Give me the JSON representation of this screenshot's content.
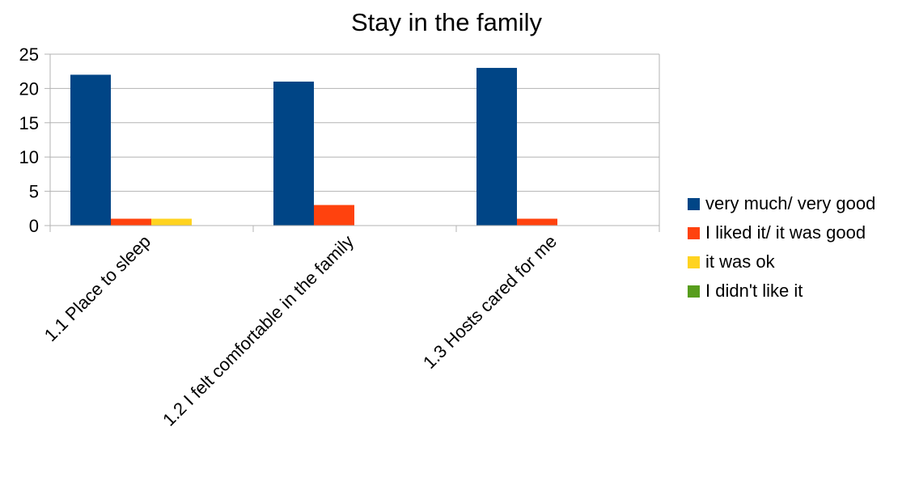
{
  "chart_data": {
    "type": "bar",
    "title": "Stay in the family",
    "xlabel": "",
    "ylabel": "",
    "categories": [
      "1.1  Place to sleep",
      "1.2  I felt comfortable in the family",
      "1.3  Hosts cared for me"
    ],
    "series": [
      {
        "name": "very much/ very good",
        "color": "#004586",
        "values": [
          22,
          21,
          23
        ]
      },
      {
        "name": "I liked it/ it was good",
        "color": "#ff420e",
        "values": [
          1,
          3,
          1
        ]
      },
      {
        "name": "it was ok",
        "color": "#ffd320",
        "values": [
          1,
          0,
          0
        ]
      },
      {
        "name": "I didn't like it",
        "color": "#579d1c",
        "values": [
          0,
          0,
          0
        ]
      }
    ],
    "yticks": [
      "0",
      "5",
      "10",
      "15",
      "20",
      "25"
    ],
    "ylim": [
      0,
      25
    ],
    "grid": true,
    "legend_position": "right"
  }
}
